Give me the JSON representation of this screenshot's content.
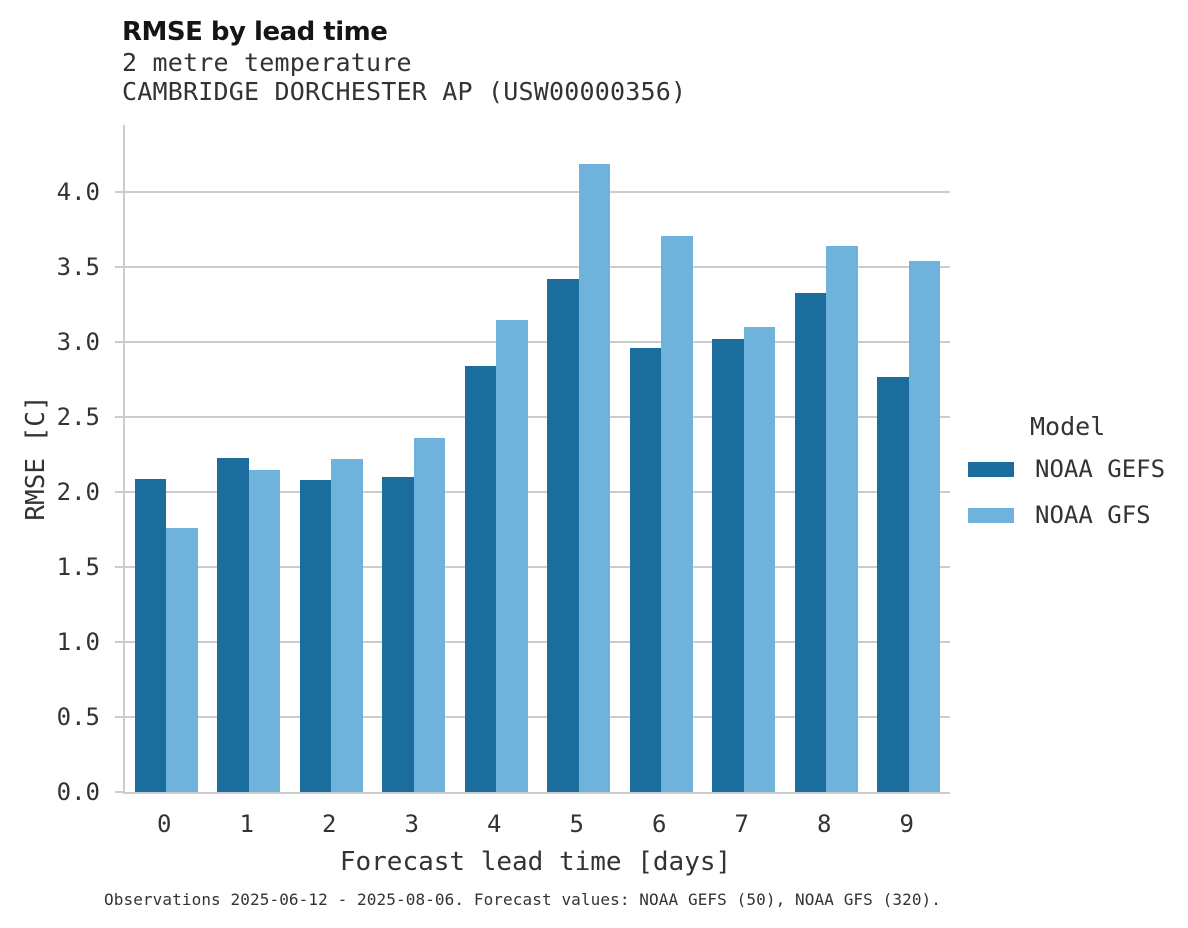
{
  "header": {
    "title": "RMSE by lead time",
    "subtitle_line1": "2 metre temperature",
    "subtitle_line2": "CAMBRIDGE DORCHESTER AP (USW00000356)"
  },
  "chart_data": {
    "type": "bar",
    "title": "RMSE by lead time",
    "subtitle": [
      "2 metre temperature",
      "CAMBRIDGE DORCHESTER AP (USW00000356)"
    ],
    "categories": [
      "0",
      "1",
      "2",
      "3",
      "4",
      "5",
      "6",
      "7",
      "8",
      "9"
    ],
    "series": [
      {
        "name": "NOAA GEFS",
        "color": "#1b6d9d",
        "values": [
          2.09,
          2.23,
          2.08,
          2.1,
          2.84,
          3.42,
          2.96,
          3.02,
          3.33,
          2.77
        ]
      },
      {
        "name": "NOAA GFS",
        "color": "#6fb2dc",
        "values": [
          1.76,
          2.15,
          2.22,
          2.36,
          3.15,
          4.19,
          3.71,
          3.1,
          3.64,
          3.54
        ]
      }
    ],
    "xlabel": "Forecast lead time [days]",
    "ylabel": "RMSE [C]",
    "ylim": [
      0,
      4.45
    ],
    "yticks": [
      "0.0",
      "0.5",
      "1.0",
      "1.5",
      "2.0",
      "2.5",
      "3.0",
      "3.5",
      "4.0"
    ],
    "grid": true,
    "legend_title": "Model",
    "legend_position": "center-right"
  },
  "legend": {
    "title": "Model",
    "items": [
      {
        "label": "NOAA GEFS",
        "color": "#1b6d9d"
      },
      {
        "label": "NOAA GFS",
        "color": "#6fb2dc"
      }
    ]
  },
  "caption": "Observations 2025-06-12 - 2025-08-06. Forecast values: NOAA GEFS (50), NOAA GFS (320)."
}
